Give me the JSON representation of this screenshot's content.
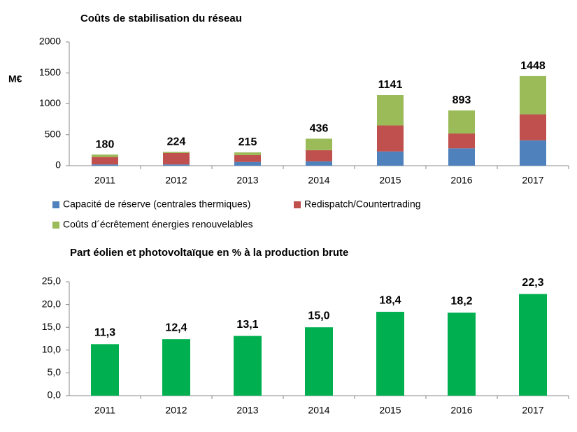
{
  "chart_data": [
    {
      "type": "stacked_bar",
      "title": "Coûts de stabilisation du réseau",
      "ylabel": "M€",
      "categories": [
        "2011",
        "2012",
        "2013",
        "2014",
        "2015",
        "2016",
        "2017"
      ],
      "series": [
        {
          "name": "Capacité de réserve (centrales thermiques)",
          "color": "#4f81bd",
          "values": [
            20,
            20,
            60,
            70,
            230,
            280,
            410
          ]
        },
        {
          "name": "Redispatch/Countertrading",
          "color": "#c0504d",
          "values": [
            120,
            185,
            110,
            180,
            420,
            240,
            420
          ]
        },
        {
          "name": "Coûts d´écrêtement énergies renouvelables",
          "color": "#9bbb59",
          "values": [
            40,
            19,
            45,
            186,
            491,
            373,
            618
          ]
        }
      ],
      "totals": [
        180,
        224,
        215,
        436,
        1141,
        893,
        1448
      ],
      "ylim": [
        0,
        2000
      ],
      "yticks": [
        0,
        500,
        1000,
        1500,
        2000
      ],
      "grid": false,
      "legend": "bottom"
    },
    {
      "type": "bar",
      "title": "Part éolien et photovoltaïque en % à la production brute",
      "categories": [
        "2011",
        "2012",
        "2013",
        "2014",
        "2015",
        "2016",
        "2017"
      ],
      "values": [
        11.3,
        12.4,
        13.1,
        15.0,
        18.4,
        18.2,
        22.3
      ],
      "value_labels": [
        "11,3",
        "12,4",
        "13,1",
        "15,0",
        "18,4",
        "18,2",
        "22,3"
      ],
      "color": "#00b050",
      "ylim": [
        0,
        25
      ],
      "yticks": [
        {
          "value": 0,
          "label": "0,0"
        },
        {
          "value": 5,
          "label": "5,0"
        },
        {
          "value": 10,
          "label": "10,0"
        },
        {
          "value": 15,
          "label": "15,0"
        },
        {
          "value": 20,
          "label": "20,0"
        },
        {
          "value": 25,
          "label": "25,0"
        }
      ],
      "grid": false
    }
  ]
}
